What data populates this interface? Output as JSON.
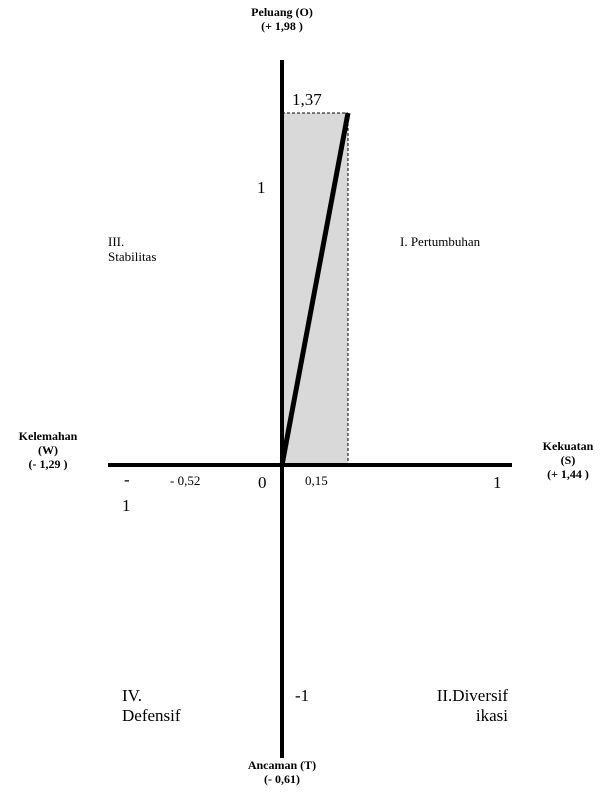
{
  "axes": {
    "top": {
      "label": "Peluang (O)",
      "value": "(+ 1,98 )"
    },
    "bottom": {
      "label": "Ancaman (T)",
      "value": "(-  0,61)"
    },
    "left": {
      "label": "Kelemahan",
      "code": "(W)",
      "value": "(-  1,29 )"
    },
    "right": {
      "label": "Kekuatan",
      "code": "(S)",
      "value": "(+ 1,44 )"
    }
  },
  "ticks": {
    "y_top_value": "1,37",
    "y_one": "1",
    "y_minus_one": "-1",
    "origin": "0",
    "x_one": "1",
    "x_minus_one_sign": "-",
    "x_minus_one_digit": "1",
    "x_neg": "- 0,52",
    "x_pos": "0,15"
  },
  "quadrants": {
    "q1": "I. Pertumbuhan",
    "q2_line1": "II.Diversif",
    "q2_line2": "ikasi",
    "q3_line1": "III.",
    "q3_line2": "Stabilitas",
    "q4_line1": "IV.",
    "q4_line2": "Defensif"
  },
  "position": {
    "x": 0.15,
    "y": 1.37
  },
  "colors": {
    "axis": "#000000",
    "shaded": "#d9d9d9",
    "background": "#ffffff"
  }
}
